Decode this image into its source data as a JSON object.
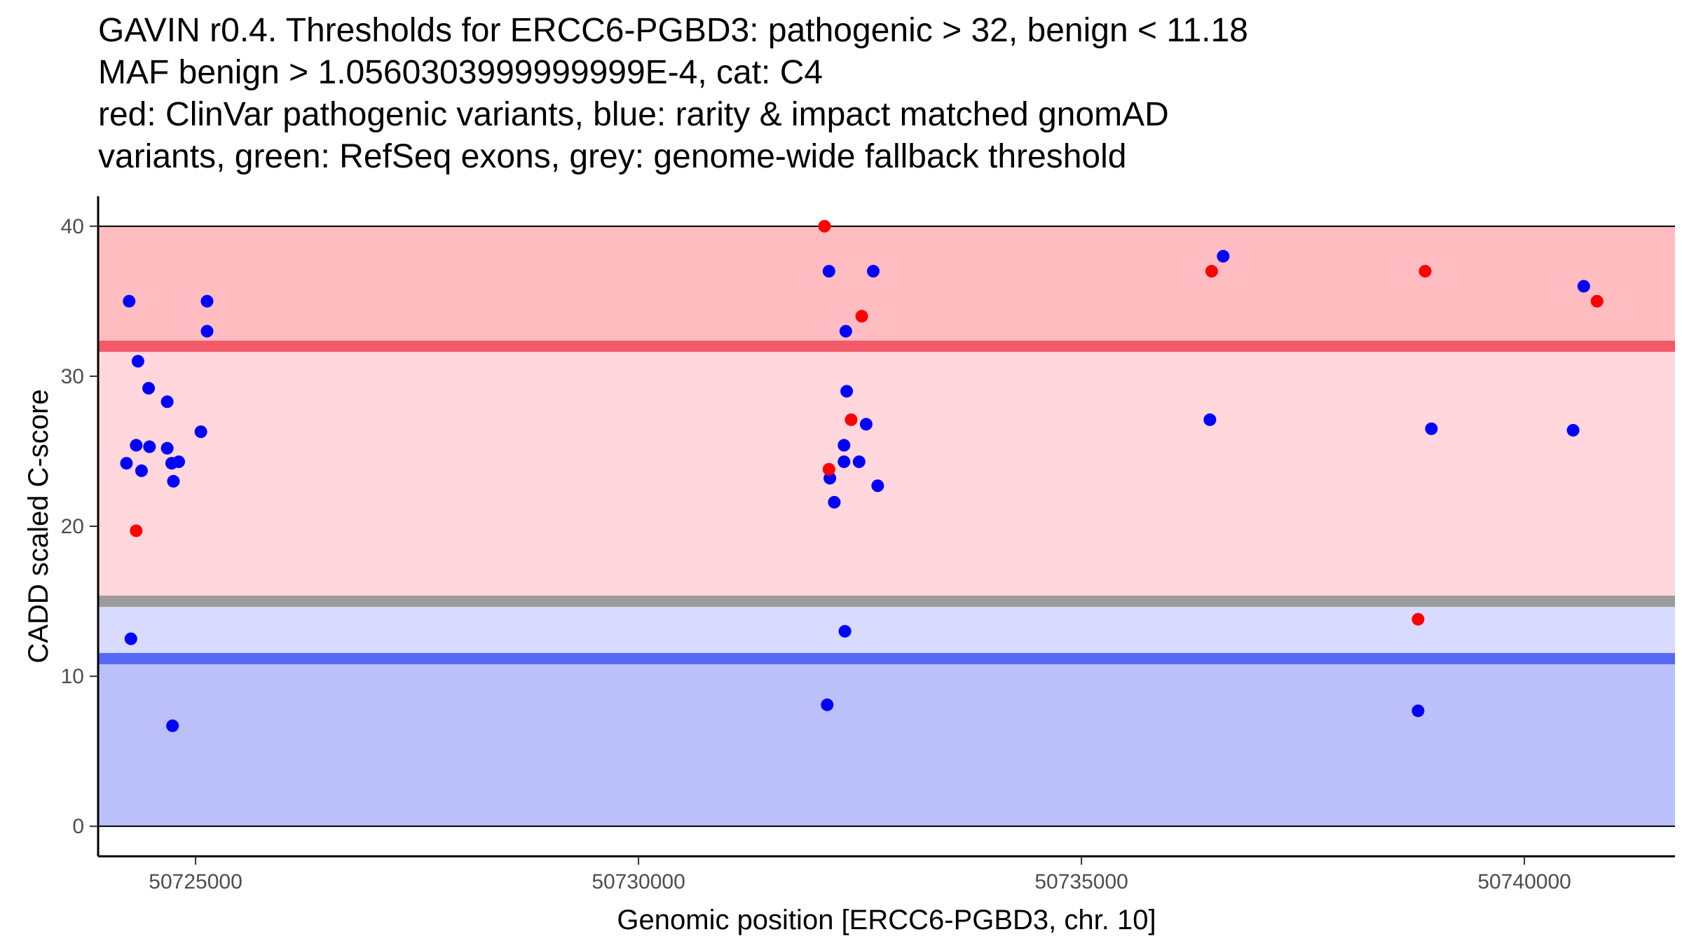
{
  "chart_data": {
    "type": "scatter",
    "title_lines": [
      "GAVIN r0.4. Thresholds for ERCC6-PGBD3: pathogenic > 32, benign < 11.18",
      "MAF benign > 1.0560303999999999E-4, cat: C4",
      "red: ClinVar pathogenic variants, blue: rarity & impact matched gnomAD",
      "variants, green: RefSeq exons, grey: genome-wide fallback threshold"
    ],
    "xlabel": "Genomic position [ERCC6-PGBD3, chr. 10]",
    "ylabel": "CADD scaled C-score",
    "xlim": [
      50723900,
      50741700
    ],
    "ylim": [
      -2,
      42
    ],
    "x_ticks": [
      50725000,
      50730000,
      50735000,
      50740000
    ],
    "y_ticks": [
      0,
      10,
      20,
      30,
      40
    ],
    "grid": false,
    "thresholds": {
      "pathogenic": 32,
      "benign": 11.18,
      "fallback": 15,
      "score_max": 40
    },
    "colors": {
      "pathogenic": "#ff0000",
      "gnomad": "#0000ff",
      "band_high": "#ffbcc1",
      "band_mid": "#ffd7dc",
      "band_low_light": "#d8daff",
      "band_low": "#bbc0fb",
      "line_pathogenic": "#f25a69",
      "line_fallback": "#9b9b9b",
      "line_benign": "#5568f6"
    },
    "series": [
      {
        "name": "ClinVar pathogenic variants",
        "color": "#ff0000",
        "points": [
          [
            50724330,
            19.7
          ],
          [
            50732100,
            40.0
          ],
          [
            50732150,
            23.8
          ],
          [
            50732400,
            27.1
          ],
          [
            50732520,
            34.0
          ],
          [
            50736470,
            37.0
          ],
          [
            50738800,
            13.8
          ],
          [
            50738880,
            37.0
          ],
          [
            50740820,
            35.0
          ]
        ]
      },
      {
        "name": "rarity & impact matched gnomAD variants",
        "color": "#0000ff",
        "points": [
          [
            50724220,
            24.2
          ],
          [
            50724250,
            35.0
          ],
          [
            50724270,
            12.5
          ],
          [
            50724330,
            25.4
          ],
          [
            50724350,
            31.0
          ],
          [
            50724390,
            23.7
          ],
          [
            50724470,
            29.2
          ],
          [
            50724480,
            25.3
          ],
          [
            50724680,
            28.3
          ],
          [
            50724680,
            25.2
          ],
          [
            50724730,
            24.2
          ],
          [
            50724740,
            6.7
          ],
          [
            50724750,
            23.0
          ],
          [
            50724810,
            24.3
          ],
          [
            50725060,
            26.3
          ],
          [
            50725130,
            33.0
          ],
          [
            50725130,
            35.0
          ],
          [
            50732130,
            8.1
          ],
          [
            50732150,
            37.0
          ],
          [
            50732160,
            23.2
          ],
          [
            50732210,
            21.6
          ],
          [
            50732320,
            25.4
          ],
          [
            50732320,
            24.3
          ],
          [
            50732330,
            13.0
          ],
          [
            50732340,
            33.0
          ],
          [
            50732350,
            29.0
          ],
          [
            50732490,
            24.3
          ],
          [
            50732570,
            26.8
          ],
          [
            50732650,
            37.0
          ],
          [
            50732700,
            22.7
          ],
          [
            50736450,
            27.1
          ],
          [
            50736600,
            38.0
          ],
          [
            50738800,
            7.7
          ],
          [
            50738950,
            26.5
          ],
          [
            50740550,
            26.4
          ],
          [
            50740670,
            36.0
          ]
        ]
      }
    ]
  }
}
